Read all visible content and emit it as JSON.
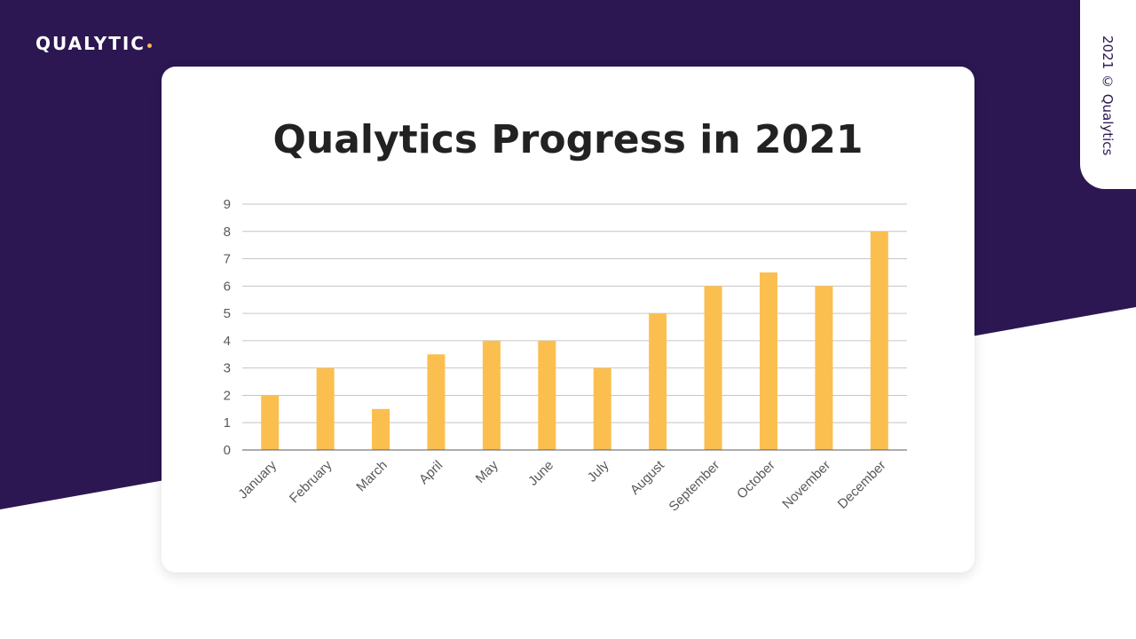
{
  "brand": {
    "logo_text": "QUALYTIC",
    "copyright": "2021 © Qualytics",
    "colors": {
      "background": "#2c1752",
      "accent": "#f8b84e"
    }
  },
  "chart_data": {
    "type": "bar",
    "title": "Qualytics Progress in 2021",
    "categories": [
      "January",
      "February",
      "March",
      "April",
      "May",
      "June",
      "July",
      "August",
      "September",
      "October",
      "November",
      "December"
    ],
    "values": [
      2,
      3,
      1.5,
      3.5,
      4,
      4,
      3,
      5,
      6,
      6.5,
      6,
      8
    ],
    "ylim": [
      0,
      9
    ],
    "yticks": [
      0,
      1,
      2,
      3,
      4,
      5,
      6,
      7,
      8,
      9
    ],
    "xlabel": "",
    "ylabel": "",
    "grid": true,
    "bar_color": "#fbbf4f"
  }
}
